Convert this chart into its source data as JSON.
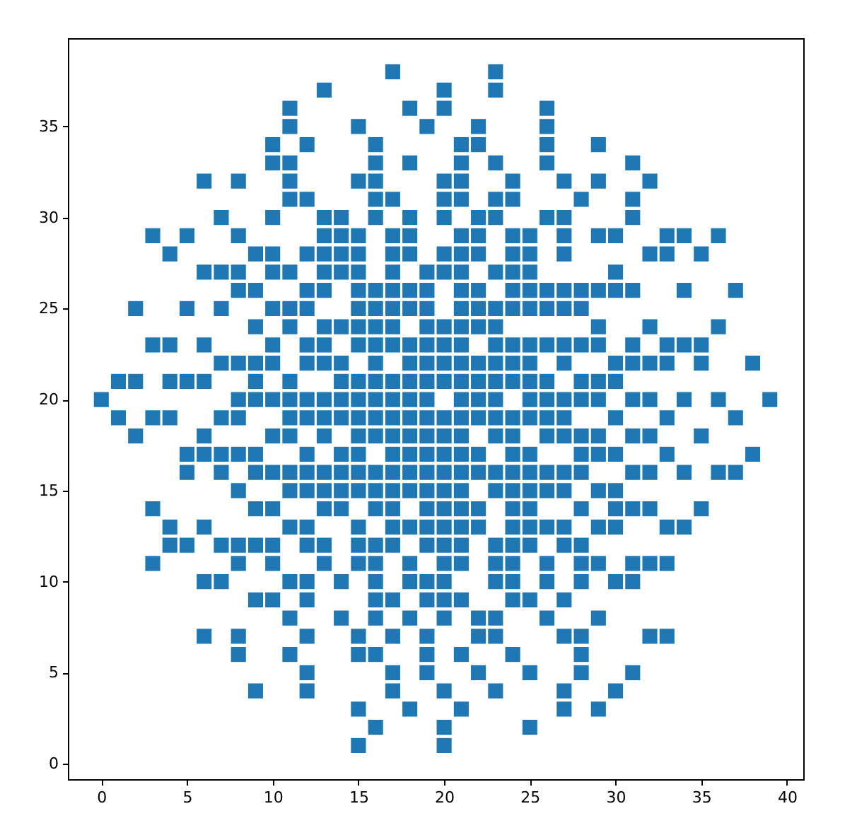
{
  "chart_data": {
    "type": "scatter",
    "marker": "square",
    "grid": false,
    "xlim": [
      -1.95,
      40.95
    ],
    "ylim": [
      -0.85,
      39.85
    ],
    "xticks": [
      0,
      5,
      10,
      15,
      20,
      25,
      30,
      35,
      40
    ],
    "yticks": [
      0,
      5,
      10,
      15,
      20,
      25,
      30,
      35
    ],
    "series": [
      {
        "color": "#1f77b4",
        "x": [
          17,
          23,
          13,
          20,
          23,
          11,
          18,
          20,
          26,
          11,
          15,
          19,
          22,
          26,
          10,
          12,
          16,
          21,
          22,
          26,
          29,
          10,
          11,
          16,
          18,
          21,
          23,
          26,
          31,
          6,
          8,
          11,
          15,
          16,
          20,
          21,
          24,
          27,
          29,
          32,
          11,
          12,
          16,
          17,
          20,
          21,
          23,
          24,
          28,
          31,
          7,
          10,
          13,
          14,
          16,
          18,
          20,
          22,
          23,
          26,
          27,
          31,
          3,
          5,
          8,
          13,
          14,
          15,
          17,
          18,
          21,
          22,
          24,
          25,
          27,
          29,
          30,
          33,
          34,
          36,
          4,
          9,
          10,
          12,
          13,
          14,
          15,
          17,
          18,
          20,
          21,
          22,
          24,
          25,
          27,
          32,
          33,
          35,
          6,
          7,
          8,
          10,
          11,
          13,
          14,
          15,
          17,
          19,
          20,
          21,
          23,
          24,
          25,
          30,
          8,
          9,
          12,
          13,
          15,
          16,
          17,
          18,
          19,
          21,
          22,
          24,
          25,
          26,
          27,
          28,
          29,
          30,
          31,
          34,
          37,
          2,
          5,
          7,
          10,
          11,
          12,
          15,
          16,
          17,
          18,
          19,
          21,
          22,
          23,
          24,
          25,
          26,
          27,
          28,
          9,
          11,
          13,
          14,
          15,
          16,
          17,
          19,
          20,
          21,
          22,
          23,
          29,
          32,
          36,
          3,
          4,
          6,
          10,
          12,
          13,
          15,
          16,
          17,
          18,
          19,
          20,
          21,
          23,
          24,
          25,
          26,
          27,
          28,
          29,
          31,
          33,
          34,
          35,
          7,
          8,
          9,
          10,
          12,
          13,
          14,
          16,
          18,
          19,
          20,
          21,
          22,
          23,
          24,
          25,
          27,
          30,
          31,
          32,
          33,
          35,
          38,
          1,
          2,
          4,
          5,
          6,
          9,
          11,
          14,
          15,
          16,
          17,
          18,
          19,
          20,
          21,
          22,
          23,
          24,
          25,
          26,
          28,
          29,
          30,
          0,
          8,
          9,
          10,
          11,
          12,
          13,
          14,
          15,
          16,
          17,
          18,
          19,
          21,
          22,
          23,
          25,
          26,
          27,
          28,
          29,
          31,
          32,
          34,
          36,
          39,
          1,
          3,
          4,
          7,
          8,
          11,
          12,
          13,
          14,
          15,
          16,
          17,
          18,
          19,
          20,
          21,
          22,
          23,
          24,
          25,
          26,
          27,
          30,
          33,
          37,
          2,
          6,
          10,
          11,
          13,
          15,
          16,
          17,
          18,
          19,
          20,
          21,
          23,
          24,
          26,
          27,
          28,
          29,
          31,
          32,
          35,
          5,
          6,
          7,
          8,
          9,
          12,
          14,
          15,
          17,
          18,
          19,
          20,
          21,
          22,
          24,
          25,
          28,
          29,
          30,
          33,
          38,
          5,
          7,
          9,
          10,
          11,
          12,
          13,
          14,
          15,
          16,
          17,
          18,
          19,
          20,
          21,
          22,
          23,
          24,
          25,
          26,
          27,
          28,
          31,
          32,
          34,
          36,
          37,
          8,
          11,
          12,
          13,
          14,
          15,
          16,
          17,
          18,
          19,
          20,
          21,
          23,
          24,
          25,
          26,
          27,
          29,
          30,
          3,
          9,
          10,
          13,
          14,
          16,
          17,
          19,
          20,
          21,
          22,
          24,
          25,
          28,
          30,
          31,
          32,
          35,
          4,
          6,
          11,
          12,
          15,
          17,
          18,
          19,
          20,
          21,
          22,
          24,
          25,
          26,
          27,
          29,
          30,
          33,
          34,
          4,
          5,
          7,
          8,
          9,
          10,
          12,
          13,
          15,
          16,
          17,
          19,
          20,
          21,
          23,
          24,
          25,
          27,
          28,
          3,
          8,
          10,
          13,
          15,
          16,
          18,
          20,
          21,
          23,
          24,
          26,
          28,
          29,
          31,
          32,
          33,
          6,
          7,
          11,
          12,
          14,
          16,
          18,
          19,
          20,
          23,
          24,
          26,
          28,
          30,
          31,
          9,
          10,
          12,
          16,
          17,
          19,
          20,
          21,
          24,
          25,
          27,
          11,
          14,
          16,
          18,
          20,
          22,
          23,
          26,
          29,
          6,
          8,
          12,
          15,
          17,
          19,
          22,
          23,
          27,
          28,
          32,
          33,
          8,
          11,
          15,
          16,
          19,
          21,
          24,
          28,
          12,
          17,
          19,
          22,
          25,
          28,
          31,
          9,
          12,
          17,
          20,
          23,
          27,
          30,
          15,
          18,
          21,
          27,
          29,
          16,
          20,
          25,
          15,
          20
        ],
        "values": [
          38,
          38,
          37,
          37,
          37,
          36,
          36,
          36,
          36,
          35,
          35,
          35,
          35,
          35,
          34,
          34,
          34,
          34,
          34,
          34,
          34,
          33,
          33,
          33,
          33,
          33,
          33,
          33,
          33,
          32,
          32,
          32,
          32,
          32,
          32,
          32,
          32,
          32,
          32,
          32,
          31,
          31,
          31,
          31,
          31,
          31,
          31,
          31,
          31,
          31,
          30,
          30,
          30,
          30,
          30,
          30,
          30,
          30,
          30,
          30,
          30,
          30,
          29,
          29,
          29,
          29,
          29,
          29,
          29,
          29,
          29,
          29,
          29,
          29,
          29,
          29,
          29,
          29,
          29,
          29,
          28,
          28,
          28,
          28,
          28,
          28,
          28,
          28,
          28,
          28,
          28,
          28,
          28,
          28,
          28,
          28,
          28,
          28,
          27,
          27,
          27,
          27,
          27,
          27,
          27,
          27,
          27,
          27,
          27,
          27,
          27,
          27,
          27,
          27,
          26,
          26,
          26,
          26,
          26,
          26,
          26,
          26,
          26,
          26,
          26,
          26,
          26,
          26,
          26,
          26,
          26,
          26,
          26,
          26,
          26,
          25,
          25,
          25,
          25,
          25,
          25,
          25,
          25,
          25,
          25,
          25,
          25,
          25,
          25,
          25,
          25,
          25,
          25,
          25,
          24,
          24,
          24,
          24,
          24,
          24,
          24,
          24,
          24,
          24,
          24,
          24,
          24,
          24,
          24,
          23,
          23,
          23,
          23,
          23,
          23,
          23,
          23,
          23,
          23,
          23,
          23,
          23,
          23,
          23,
          23,
          23,
          23,
          23,
          23,
          23,
          23,
          23,
          23,
          22,
          22,
          22,
          22,
          22,
          22,
          22,
          22,
          22,
          22,
          22,
          22,
          22,
          22,
          22,
          22,
          22,
          22,
          22,
          22,
          22,
          22,
          22,
          21,
          21,
          21,
          21,
          21,
          21,
          21,
          21,
          21,
          21,
          21,
          21,
          21,
          21,
          21,
          21,
          21,
          21,
          21,
          21,
          21,
          21,
          21,
          20,
          20,
          20,
          20,
          20,
          20,
          20,
          20,
          20,
          20,
          20,
          20,
          20,
          20,
          20,
          20,
          20,
          20,
          20,
          20,
          20,
          20,
          20,
          20,
          20,
          20,
          19,
          19,
          19,
          19,
          19,
          19,
          19,
          19,
          19,
          19,
          19,
          19,
          19,
          19,
          19,
          19,
          19,
          19,
          19,
          19,
          19,
          19,
          19,
          19,
          19,
          18,
          18,
          18,
          18,
          18,
          18,
          18,
          18,
          18,
          18,
          18,
          18,
          18,
          18,
          18,
          18,
          18,
          18,
          18,
          18,
          18,
          17,
          17,
          17,
          17,
          17,
          17,
          17,
          17,
          17,
          17,
          17,
          17,
          17,
          17,
          17,
          17,
          17,
          17,
          17,
          17,
          17,
          16,
          16,
          16,
          16,
          16,
          16,
          16,
          16,
          16,
          16,
          16,
          16,
          16,
          16,
          16,
          16,
          16,
          16,
          16,
          16,
          16,
          16,
          16,
          16,
          16,
          16,
          16,
          15,
          15,
          15,
          15,
          15,
          15,
          15,
          15,
          15,
          15,
          15,
          15,
          15,
          15,
          15,
          15,
          15,
          15,
          15,
          14,
          14,
          14,
          14,
          14,
          14,
          14,
          14,
          14,
          14,
          14,
          14,
          14,
          14,
          14,
          14,
          14,
          14,
          13,
          13,
          13,
          13,
          13,
          13,
          13,
          13,
          13,
          13,
          13,
          13,
          13,
          13,
          13,
          13,
          13,
          13,
          13,
          12,
          12,
          12,
          12,
          12,
          12,
          12,
          12,
          12,
          12,
          12,
          12,
          12,
          12,
          12,
          12,
          12,
          12,
          12,
          11,
          11,
          11,
          11,
          11,
          11,
          11,
          11,
          11,
          11,
          11,
          11,
          11,
          11,
          11,
          11,
          11,
          10,
          10,
          10,
          10,
          10,
          10,
          10,
          10,
          10,
          10,
          10,
          10,
          10,
          10,
          10,
          9,
          9,
          9,
          9,
          9,
          9,
          9,
          9,
          9,
          9,
          9,
          8,
          8,
          8,
          8,
          8,
          8,
          8,
          8,
          8,
          7,
          7,
          7,
          7,
          7,
          7,
          7,
          7,
          7,
          7,
          7,
          7,
          6,
          6,
          6,
          6,
          6,
          6,
          6,
          6,
          5,
          5,
          5,
          5,
          5,
          5,
          5,
          4,
          4,
          4,
          4,
          4,
          4,
          4,
          3,
          3,
          3,
          3,
          3,
          2,
          2,
          2,
          1,
          1
        ]
      }
    ]
  }
}
